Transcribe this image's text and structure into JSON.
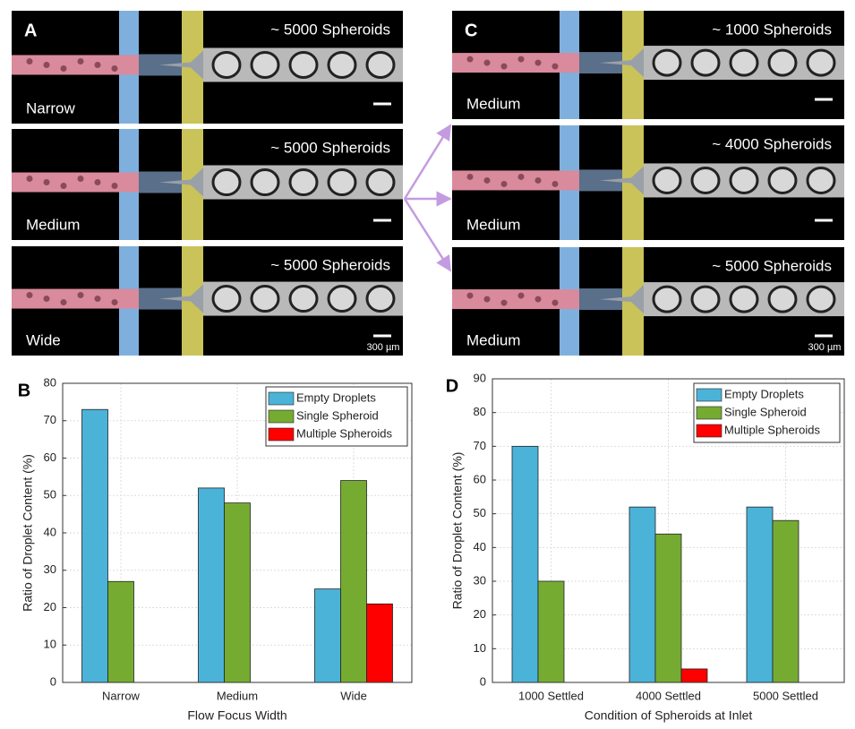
{
  "images": [
    {
      "letter": "A",
      "rows": [
        {
          "count": "~ 5000 Spheroids",
          "label": "Narrow"
        },
        {
          "count": "~ 5000 Spheroids",
          "label": "Medium"
        },
        {
          "count": "~ 5000 Spheroids",
          "label": "Wide"
        }
      ],
      "scale_label": "300 µm"
    },
    {
      "letter": "C",
      "rows": [
        {
          "count": "~ 1000 Spheroids",
          "label": "Medium"
        },
        {
          "count": "~ 4000 Spheroids",
          "label": "Medium"
        },
        {
          "count": "~ 5000 Spheroids",
          "label": "Medium"
        }
      ],
      "scale_label": "300 µm"
    }
  ],
  "chart_data": [
    {
      "type": "bar",
      "panel_label": "B",
      "ylabel": "Ratio of Droplet Content (%)",
      "xlabel": "Flow Focus Width",
      "categories": [
        "Narrow",
        "Medium",
        "Wide"
      ],
      "series": [
        {
          "name": "Empty Droplets",
          "color": "#4bb3d8",
          "values": [
            73,
            52,
            25
          ]
        },
        {
          "name": "Single Spheroid",
          "color": "#76ab32",
          "values": [
            27,
            48,
            54
          ]
        },
        {
          "name": "Multiple Spheroids",
          "color": "#ff0000",
          "values": [
            0,
            0,
            21
          ]
        }
      ],
      "ylim": [
        0,
        80
      ],
      "yticks": [
        0,
        10,
        20,
        30,
        40,
        50,
        60,
        70,
        80
      ],
      "grid": true,
      "legend": "top-right"
    },
    {
      "type": "bar",
      "panel_label": "D",
      "ylabel": "Ratio of Droplet Content (%)",
      "xlabel": "Condition of Spheroids at Inlet",
      "categories": [
        "1000 Settled",
        "4000 Settled",
        "5000 Settled"
      ],
      "series": [
        {
          "name": "Empty Droplets",
          "color": "#4bb3d8",
          "values": [
            70,
            52,
            52
          ]
        },
        {
          "name": "Single Spheroid",
          "color": "#76ab32",
          "values": [
            30,
            44,
            48
          ]
        },
        {
          "name": "Multiple Spheroids",
          "color": "#ff0000",
          "values": [
            0,
            4,
            0
          ]
        }
      ],
      "ylim": [
        0,
        90
      ],
      "yticks": [
        0,
        10,
        20,
        30,
        40,
        50,
        60,
        70,
        80,
        90
      ],
      "grid": true,
      "legend": "top-right"
    }
  ]
}
